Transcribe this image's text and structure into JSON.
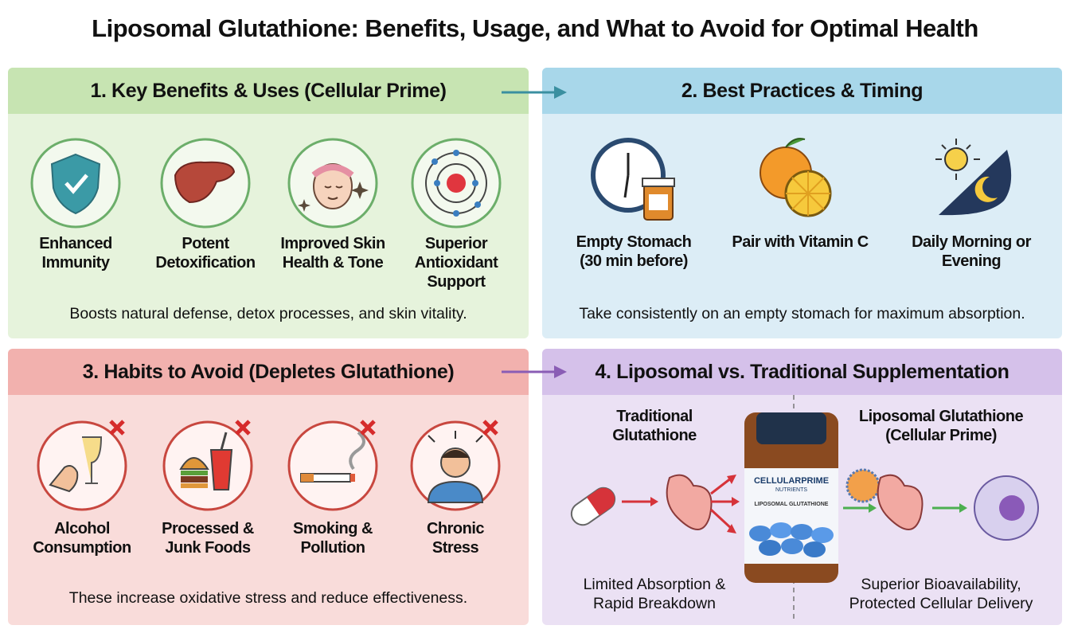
{
  "title": "Liposomal Glutathione: Benefits, Usage, and What to Avoid for Optimal Health",
  "panels": [
    {
      "heading": "1. Key Benefits & Uses (Cellular Prime)",
      "items": [
        "Enhanced Immunity",
        "Potent Detoxification",
        "Improved Skin Health & Tone",
        "Superior Antioxidant Support"
      ],
      "caption": "Boosts natural defense, detox processes, and skin vitality."
    },
    {
      "heading": "2. Best Practices & Timing",
      "items": [
        "Empty Stomach (30 min before)",
        "Pair with Vitamin C",
        "Daily Morning or Evening"
      ],
      "caption": "Take consistently on an empty stomach for maximum absorption."
    },
    {
      "heading": "3. Habits to Avoid (Depletes Glutathione)",
      "items": [
        "Alcohol Consumption",
        "Processed & Junk Foods",
        "Smoking & Pollution",
        "Chronic Stress"
      ],
      "caption": "These increase oxidative stress and reduce effectiveness."
    },
    {
      "heading": "4. Liposomal vs. Traditional Supplementation",
      "comparison": {
        "traditional": {
          "title": "Traditional Glutathione",
          "caption": "Limited Absorption & Rapid Breakdown"
        },
        "liposomal": {
          "title": "Liposomal Glutathione (Cellular Prime)",
          "caption": "Superior Bioavailability, Protected Cellular Delivery"
        }
      },
      "bottle": {
        "brand": "CELLULARPRIME",
        "sub": "NUTRIENTS",
        "product": "LIPOSOMAL GLUTATHIONE"
      }
    }
  ]
}
